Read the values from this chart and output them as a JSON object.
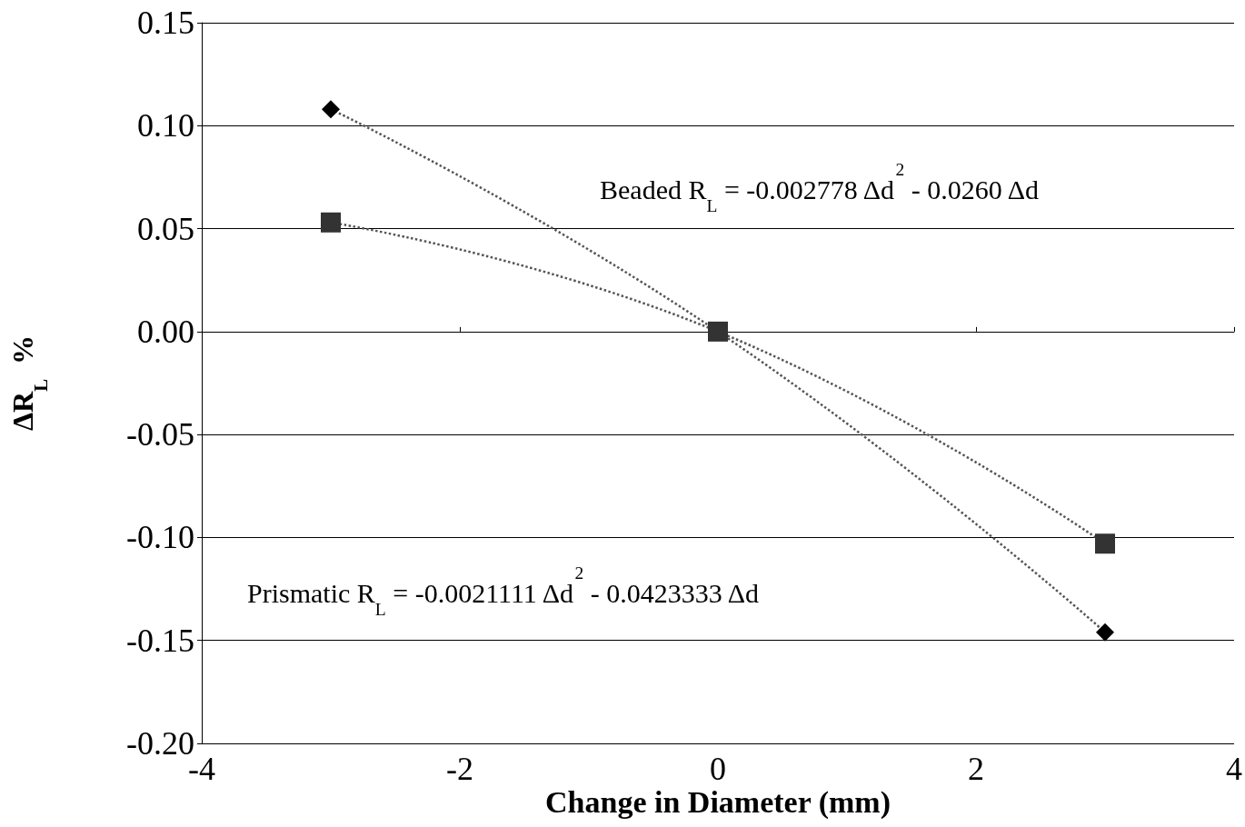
{
  "chart_data": {
    "type": "line",
    "xlabel": "Change in Diameter (mm)",
    "ylabel": "ΔR$_{L}$  %",
    "x": [
      -3,
      0,
      3
    ],
    "series": [
      {
        "color": "#000000",
        "marker": "diamond",
        "line_style": "dotted",
        "values": [
          0.108,
          0,
          -0.146
        ]
      },
      {
        "color": "#333333",
        "marker": "square",
        "line_style": "dotted",
        "values": [
          0.053,
          0,
          -0.103
        ]
      }
    ],
    "annotations": [
      "Beaded R$_{L}$ = -0.002778 Δd$^{2}$ - 0.0260 Δd",
      "Prismatic R$_{L}$ = -0.0021111 Δd$^{2}$ - 0.0423333 Δd"
    ],
    "xlim": [
      -4,
      4
    ],
    "xticks": [
      -4,
      -2,
      0,
      2,
      4
    ],
    "ylim": [
      -0.2,
      0.15
    ],
    "yticks": [
      {
        "value": -0.2,
        "label": "-0.20"
      },
      -0.15,
      {
        "value": -0.1,
        "label": "-0.10"
      },
      -0.05,
      {
        "value": 0,
        "label": "0.00"
      },
      0.05,
      {
        "value": 0.1,
        "label": "0.10"
      },
      0.15
    ],
    "grid": "y"
  }
}
